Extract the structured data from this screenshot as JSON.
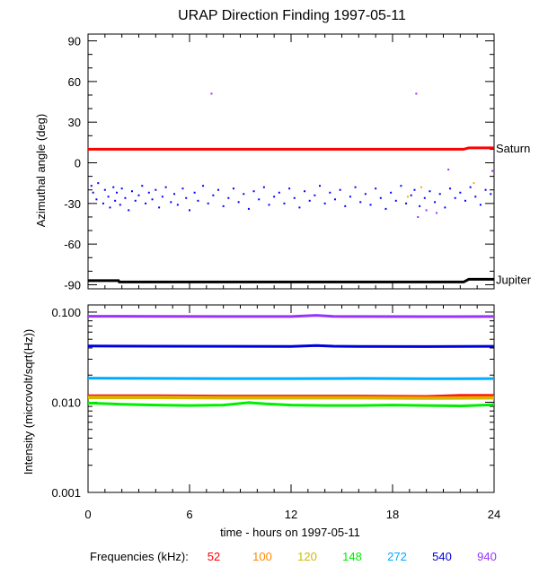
{
  "chart_data": [
    {
      "type": "scatter",
      "title": "URAP Direction Finding  1997-05-11",
      "ylabel": "Azimuthal angle (deg)",
      "xlabel": "",
      "xlim": [
        0,
        24
      ],
      "ylim": [
        -93,
        95
      ],
      "y_ticks": [
        90,
        60,
        30,
        0,
        -30,
        -60,
        -90
      ],
      "y_tick_labels": [
        "90",
        "60",
        "30",
        "0",
        "-30",
        "-60",
        "-90"
      ],
      "lines": [
        {
          "name": "Saturn",
          "color": "#ff0000",
          "points": [
            [
              0,
              10
            ],
            [
              22.2,
              10
            ],
            [
              22.5,
              11
            ],
            [
              24,
              11
            ]
          ]
        },
        {
          "name": "Jupiter",
          "color": "#000000",
          "points": [
            [
              0,
              -87
            ],
            [
              1.8,
              -87
            ],
            [
              1.85,
              -88
            ],
            [
              22.2,
              -88
            ],
            [
              22.5,
              -86
            ],
            [
              24,
              -86
            ]
          ]
        }
      ],
      "scatter": [
        {
          "color": "#0000ff",
          "points": [
            [
              0.2,
              -17
            ],
            [
              0.3,
              -22
            ],
            [
              0.5,
              -27
            ],
            [
              0.6,
              -15
            ],
            [
              0.9,
              -30
            ],
            [
              1.0,
              -20
            ],
            [
              1.2,
              -25
            ],
            [
              1.3,
              -33
            ],
            [
              1.5,
              -18
            ],
            [
              1.6,
              -28
            ],
            [
              1.7,
              -22
            ],
            [
              1.9,
              -31
            ],
            [
              2.0,
              -19
            ],
            [
              2.2,
              -26
            ],
            [
              2.4,
              -35
            ],
            [
              2.6,
              -21
            ],
            [
              2.8,
              -28
            ],
            [
              3.0,
              -24
            ],
            [
              3.2,
              -17
            ],
            [
              3.4,
              -30
            ],
            [
              3.6,
              -22
            ],
            [
              3.8,
              -27
            ],
            [
              4.0,
              -20
            ],
            [
              4.2,
              -33
            ],
            [
              4.4,
              -25
            ],
            [
              4.6,
              -18
            ],
            [
              4.9,
              -29
            ],
            [
              5.1,
              -23
            ],
            [
              5.3,
              -31
            ],
            [
              5.6,
              -19
            ],
            [
              5.8,
              -26
            ],
            [
              6.0,
              -35
            ],
            [
              6.3,
              -22
            ],
            [
              6.5,
              -28
            ],
            [
              6.8,
              -17
            ],
            [
              7.1,
              -30
            ],
            [
              7.4,
              -24
            ],
            [
              7.7,
              -20
            ],
            [
              8.0,
              -32
            ],
            [
              8.3,
              -26
            ],
            [
              8.6,
              -19
            ],
            [
              8.9,
              -29
            ],
            [
              9.2,
              -23
            ],
            [
              9.5,
              -34
            ],
            [
              9.8,
              -21
            ],
            [
              10.1,
              -27
            ],
            [
              10.4,
              -18
            ],
            [
              10.7,
              -31
            ],
            [
              11.0,
              -25
            ],
            [
              11.3,
              -22
            ],
            [
              11.6,
              -30
            ],
            [
              11.9,
              -19
            ],
            [
              12.2,
              -26
            ],
            [
              12.5,
              -33
            ],
            [
              12.8,
              -21
            ],
            [
              13.1,
              -28
            ],
            [
              13.4,
              -24
            ],
            [
              13.7,
              -17
            ],
            [
              14.0,
              -30
            ],
            [
              14.3,
              -22
            ],
            [
              14.6,
              -27
            ],
            [
              14.9,
              -20
            ],
            [
              15.2,
              -32
            ],
            [
              15.5,
              -25
            ],
            [
              15.8,
              -18
            ],
            [
              16.1,
              -29
            ],
            [
              16.4,
              -23
            ],
            [
              16.7,
              -31
            ],
            [
              17.0,
              -19
            ],
            [
              17.3,
              -26
            ],
            [
              17.6,
              -34
            ],
            [
              17.9,
              -22
            ],
            [
              18.2,
              -28
            ],
            [
              18.5,
              -17
            ],
            [
              18.8,
              -30
            ],
            [
              19.1,
              -24
            ],
            [
              19.3,
              -20
            ],
            [
              19.6,
              -32
            ],
            [
              19.9,
              -26
            ],
            [
              20.2,
              -21
            ],
            [
              20.5,
              -29
            ],
            [
              20.8,
              -23
            ],
            [
              21.1,
              -33
            ],
            [
              21.4,
              -19
            ],
            [
              21.7,
              -26
            ],
            [
              22.0,
              -22
            ],
            [
              22.3,
              -28
            ],
            [
              22.6,
              -18
            ],
            [
              22.9,
              -25
            ],
            [
              23.2,
              -31
            ],
            [
              23.5,
              -20
            ],
            [
              23.8,
              -23
            ]
          ]
        },
        {
          "color": "#9933ff",
          "points": [
            [
              7.3,
              51
            ],
            [
              19.4,
              51
            ],
            [
              20.6,
              -37
            ],
            [
              21.3,
              -5
            ],
            [
              19.5,
              -40
            ],
            [
              20.0,
              -35
            ],
            [
              23.9,
              -6
            ]
          ]
        },
        {
          "color": "#ffaa00",
          "points": [
            [
              18.9,
              -25
            ],
            [
              19.7,
              -18
            ],
            [
              22.8,
              -15
            ]
          ]
        }
      ]
    },
    {
      "type": "line",
      "title": "",
      "ylabel": "Intensity (microvolt/sqrt(Hz))",
      "xlabel": "time - hours on 1997-05-11",
      "xlim": [
        0,
        24
      ],
      "ylim": [
        0.001,
        0.12
      ],
      "yscale": "log",
      "x_ticks": [
        0,
        6,
        12,
        18,
        24
      ],
      "x_tick_labels": [
        "0",
        "6",
        "12",
        "18",
        "24"
      ],
      "y_ticks": [
        0.1,
        0.01,
        0.001
      ],
      "y_tick_labels": [
        "0.100",
        "0.010",
        "0.001"
      ],
      "legend_title": "Frequencies (kHz):",
      "legend_placement": "bottom",
      "series": [
        {
          "name": "52",
          "color": "#ff0000",
          "x": [
            0,
            4,
            8,
            12,
            16,
            20,
            22,
            24
          ],
          "values": [
            0.0118,
            0.0118,
            0.0117,
            0.0117,
            0.0117,
            0.0116,
            0.0119,
            0.0119
          ]
        },
        {
          "name": "100",
          "color": "#ff8800",
          "x": [
            0,
            4,
            8,
            12,
            16,
            20,
            24
          ],
          "values": [
            0.0115,
            0.0115,
            0.0114,
            0.0114,
            0.0114,
            0.0113,
            0.0114
          ]
        },
        {
          "name": "120",
          "color": "#ccbb00",
          "x": [
            0,
            4,
            8,
            12,
            16,
            20,
            24
          ],
          "values": [
            0.0112,
            0.0112,
            0.0111,
            0.0111,
            0.0111,
            0.011,
            0.0111
          ]
        },
        {
          "name": "148",
          "color": "#00ee00",
          "x": [
            0,
            2,
            4,
            6,
            8,
            9.5,
            10.5,
            12,
            14,
            16,
            18,
            20,
            22,
            24
          ],
          "values": [
            0.0098,
            0.0095,
            0.0093,
            0.0092,
            0.0093,
            0.0099,
            0.0096,
            0.0093,
            0.0092,
            0.0092,
            0.0093,
            0.0092,
            0.0091,
            0.0094
          ]
        },
        {
          "name": "272",
          "color": "#00aaff",
          "x": [
            0,
            4,
            8,
            12,
            16,
            20,
            24
          ],
          "values": [
            0.0185,
            0.0184,
            0.0183,
            0.0183,
            0.0184,
            0.0182,
            0.0183
          ]
        },
        {
          "name": "540",
          "color": "#0000dd",
          "x": [
            0,
            4,
            8,
            12,
            13.5,
            14.5,
            16,
            20,
            24
          ],
          "values": [
            0.042,
            0.0418,
            0.0417,
            0.0416,
            0.0425,
            0.0418,
            0.0416,
            0.0415,
            0.0417
          ]
        },
        {
          "name": "940",
          "color": "#9933ff",
          "x": [
            0,
            4,
            8,
            12,
            13.5,
            14.5,
            16,
            20,
            24
          ],
          "values": [
            0.09,
            0.0895,
            0.0893,
            0.0892,
            0.092,
            0.0895,
            0.0892,
            0.089,
            0.0893
          ]
        }
      ]
    }
  ]
}
